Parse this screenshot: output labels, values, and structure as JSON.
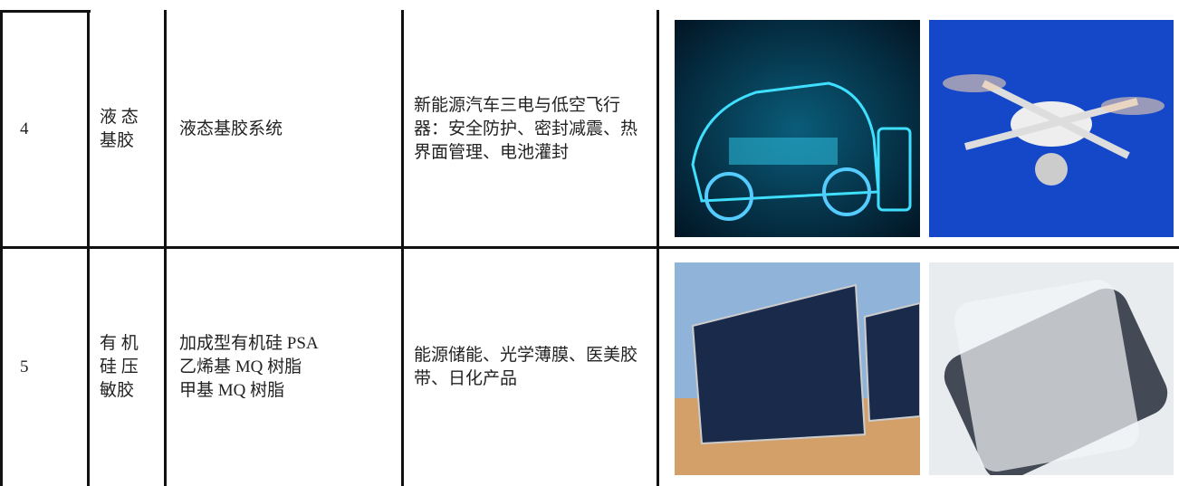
{
  "table": {
    "rows": [
      {
        "no": "4",
        "category": [
          "液 态",
          "基胶"
        ],
        "products": [
          "液态基胶系统"
        ],
        "applications": "新能源汽车三电与低空飞行器：安全防护、密封减震、热界面管理、电池灌封"
      },
      {
        "no": "5",
        "category": [
          "有 机",
          "硅 压",
          "敏胶"
        ],
        "products": [
          "加成型有机硅 PSA",
          "乙烯基 MQ 树脂",
          "甲基 MQ 树脂"
        ],
        "applications": "能源储能、光学薄膜、医美胶带、日化产品"
      }
    ]
  }
}
